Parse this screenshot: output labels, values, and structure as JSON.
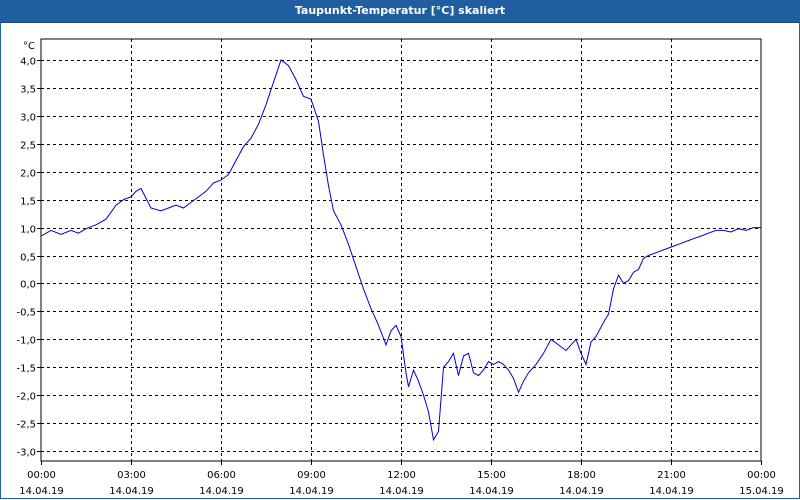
{
  "title": "Taupunkt-Temperatur [°C] skaliert",
  "colors": {
    "titlebar": "#1f5f9f",
    "line": "#0000cc",
    "grid": "#000000"
  },
  "chart_data": {
    "type": "line",
    "title": "Taupunkt-Temperatur [°C] skaliert",
    "ylabel": "°C",
    "xlabel": "",
    "ylim": [
      -3.0,
      4.0
    ],
    "yticks": [
      4.0,
      3.5,
      3.0,
      2.5,
      2.0,
      1.5,
      1.0,
      0.5,
      0.0,
      -0.5,
      -1.0,
      -1.5,
      -2.0,
      -2.5,
      -3.0
    ],
    "ytick_labels": [
      "4,0",
      "3,5",
      "3,0",
      "2,5",
      "2,0",
      "1,5",
      "1,0",
      "0,5",
      "0,0",
      "-0,5",
      "-1,0",
      "-1,5",
      "-2,0",
      "-2,5",
      "-3,0"
    ],
    "xlim": [
      "2019-04-14 00:00",
      "2019-04-15 00:00"
    ],
    "xticks": [
      {
        "time": "00:00",
        "date": "14.04.19"
      },
      {
        "time": "03:00",
        "date": "14.04.19"
      },
      {
        "time": "06:00",
        "date": "14.04.19"
      },
      {
        "time": "09:00",
        "date": "14.04.19"
      },
      {
        "time": "12:00",
        "date": "14.04.19"
      },
      {
        "time": "15:00",
        "date": "14.04.19"
      },
      {
        "time": "18:00",
        "date": "14.04.19"
      },
      {
        "time": "21:00",
        "date": "14.04.19"
      },
      {
        "time": "00:00",
        "date": "15.04.19"
      }
    ],
    "grid": true,
    "series": [
      {
        "x": [
          "00:00",
          "00:20",
          "00:40",
          "01:00",
          "01:15",
          "01:30",
          "01:50",
          "02:10",
          "02:30",
          "02:45",
          "03:00",
          "03:10",
          "03:20",
          "03:40",
          "04:00",
          "04:15",
          "04:30",
          "04:45",
          "05:00",
          "05:15",
          "05:30",
          "05:45",
          "06:00",
          "06:15",
          "06:30",
          "06:45",
          "07:00",
          "07:15",
          "07:30",
          "07:45",
          "08:00",
          "08:15",
          "08:30",
          "08:45",
          "09:00",
          "09:15",
          "09:25",
          "09:35",
          "09:45",
          "10:00",
          "10:15",
          "10:30",
          "10:45",
          "11:00",
          "11:15",
          "11:30",
          "11:40",
          "11:50",
          "12:00",
          "12:10",
          "12:15",
          "12:25",
          "12:35",
          "12:45",
          "12:55",
          "13:05",
          "13:15",
          "13:25",
          "13:35",
          "13:45",
          "13:55",
          "14:05",
          "14:15",
          "14:25",
          "14:35",
          "14:45",
          "14:55",
          "15:05",
          "15:15",
          "15:25",
          "15:35",
          "15:45",
          "15:55",
          "16:05",
          "16:15",
          "16:30",
          "16:45",
          "17:00",
          "17:15",
          "17:30",
          "17:40",
          "17:50",
          "18:00",
          "18:10",
          "18:20",
          "18:30",
          "18:45",
          "18:55",
          "19:05",
          "19:15",
          "19:25",
          "19:35",
          "19:45",
          "19:55",
          "20:05",
          "20:15",
          "20:30",
          "20:45",
          "21:00",
          "21:15",
          "21:30",
          "21:45",
          "22:00",
          "22:15",
          "22:30",
          "22:45",
          "23:00",
          "23:15",
          "23:30",
          "23:45",
          "00:00"
        ],
        "values": [
          0.85,
          0.95,
          0.88,
          0.95,
          0.9,
          0.98,
          1.05,
          1.15,
          1.4,
          1.5,
          1.55,
          1.65,
          1.7,
          1.35,
          1.3,
          1.35,
          1.4,
          1.35,
          1.45,
          1.55,
          1.65,
          1.8,
          1.85,
          1.95,
          2.2,
          2.45,
          2.6,
          2.85,
          3.2,
          3.6,
          4.0,
          3.9,
          3.65,
          3.35,
          3.3,
          2.9,
          2.3,
          1.75,
          1.3,
          1.05,
          0.7,
          0.3,
          -0.1,
          -0.45,
          -0.75,
          -1.1,
          -0.85,
          -0.75,
          -0.95,
          -1.6,
          -1.85,
          -1.55,
          -1.75,
          -2.0,
          -2.3,
          -2.8,
          -2.65,
          -1.5,
          -1.4,
          -1.25,
          -1.65,
          -1.3,
          -1.25,
          -1.6,
          -1.65,
          -1.55,
          -1.4,
          -1.45,
          -1.4,
          -1.45,
          -1.55,
          -1.7,
          -1.95,
          -1.75,
          -1.6,
          -1.45,
          -1.25,
          -1.0,
          -1.1,
          -1.2,
          -1.1,
          -1.0,
          -1.25,
          -1.45,
          -1.05,
          -0.95,
          -0.7,
          -0.55,
          -0.1,
          0.15,
          0.0,
          0.05,
          0.2,
          0.25,
          0.45,
          0.5,
          0.55,
          0.6,
          0.65,
          0.7,
          0.75,
          0.8,
          0.85,
          0.9,
          0.95,
          0.95,
          0.92,
          0.98,
          0.95,
          1.0,
          1.0
        ]
      }
    ]
  }
}
